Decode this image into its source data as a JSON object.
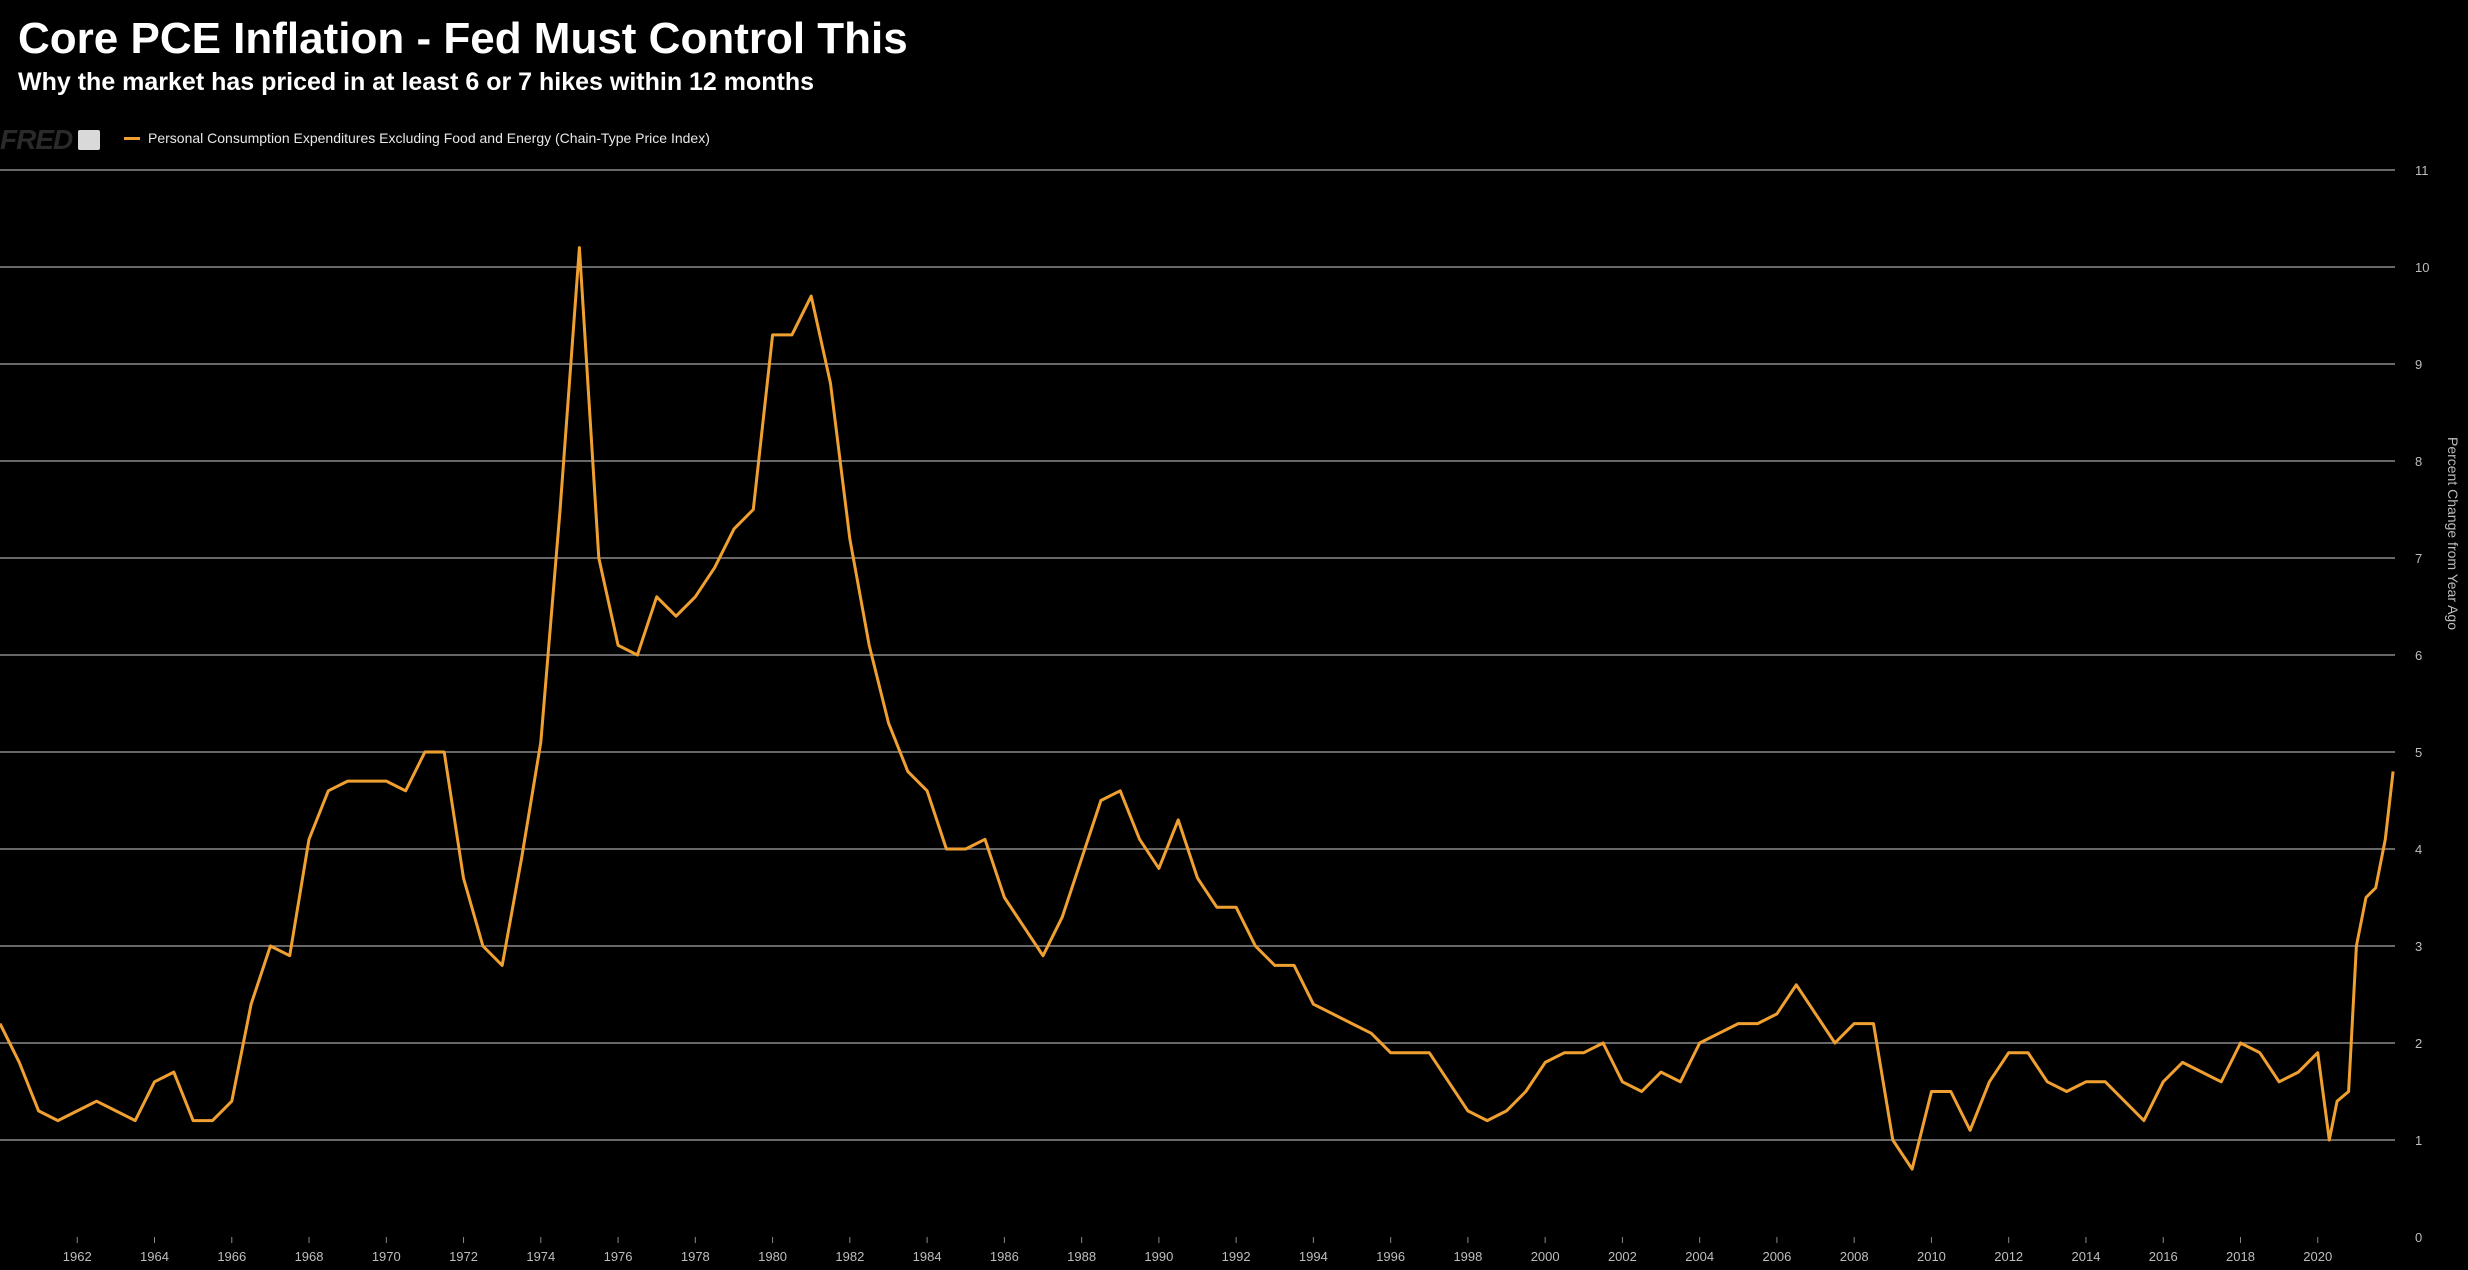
{
  "header": {
    "title": "Core PCE Inflation - Fed Must Control This",
    "subtitle": "Why the market has priced in at least 6 or 7 hikes within 12 months"
  },
  "brand": {
    "logo_text": "FRED",
    "icon": "chart-line-icon"
  },
  "chart_data": {
    "type": "line",
    "title": "Core PCE Inflation - Fed Must Control This",
    "subtitle": "Why the market has priced in at least 6 or 7 hikes within 12 months",
    "xlabel": "",
    "ylabel": "Percent Change from Year Ago",
    "xlim": [
      1960.0,
      2022.0
    ],
    "ylim": [
      0,
      11
    ],
    "y_ticks": [
      0,
      1,
      2,
      3,
      4,
      5,
      6,
      7,
      8,
      9,
      10,
      11
    ],
    "x_ticks": [
      "1962",
      "1964",
      "1966",
      "1968",
      "1970",
      "1972",
      "1974",
      "1976",
      "1978",
      "1980",
      "1982",
      "1984",
      "1986",
      "1988",
      "1990",
      "1992",
      "1994",
      "1996",
      "1998",
      "2000",
      "2002",
      "2004",
      "2006",
      "2008",
      "2010",
      "2012",
      "2014",
      "2016",
      "2018",
      "2020"
    ],
    "grid": true,
    "legend_position": "top-left",
    "colors": {
      "line": "#f0a030",
      "grid": "#8a8a8a",
      "background": "#000000"
    },
    "series": [
      {
        "name": "Personal Consumption Expenditures Excluding Food and Energy (Chain-Type Price Index)",
        "x": [
          1960.0,
          1960.5,
          1961.0,
          1961.5,
          1962.0,
          1962.5,
          1963.0,
          1963.5,
          1964.0,
          1964.5,
          1965.0,
          1965.5,
          1966.0,
          1966.5,
          1967.0,
          1967.5,
          1968.0,
          1968.5,
          1969.0,
          1969.5,
          1970.0,
          1970.5,
          1971.0,
          1971.5,
          1972.0,
          1972.5,
          1973.0,
          1973.5,
          1974.0,
          1974.5,
          1975.0,
          1975.5,
          1976.0,
          1976.5,
          1977.0,
          1977.5,
          1978.0,
          1978.5,
          1979.0,
          1979.5,
          1980.0,
          1980.5,
          1981.0,
          1981.5,
          1982.0,
          1982.5,
          1983.0,
          1983.5,
          1984.0,
          1984.5,
          1985.0,
          1985.5,
          1986.0,
          1986.5,
          1987.0,
          1987.5,
          1988.0,
          1988.5,
          1989.0,
          1989.5,
          1990.0,
          1990.5,
          1991.0,
          1991.5,
          1992.0,
          1992.5,
          1993.0,
          1993.5,
          1994.0,
          1994.5,
          1995.0,
          1995.5,
          1996.0,
          1996.5,
          1997.0,
          1997.5,
          1998.0,
          1998.5,
          1999.0,
          1999.5,
          2000.0,
          2000.5,
          2001.0,
          2001.5,
          2002.0,
          2002.5,
          2003.0,
          2003.5,
          2004.0,
          2004.5,
          2005.0,
          2005.5,
          2006.0,
          2006.5,
          2007.0,
          2007.5,
          2008.0,
          2008.5,
          2009.0,
          2009.5,
          2010.0,
          2010.5,
          2011.0,
          2011.5,
          2012.0,
          2012.5,
          2013.0,
          2013.5,
          2014.0,
          2014.5,
          2015.0,
          2015.5,
          2016.0,
          2016.5,
          2017.0,
          2017.5,
          2018.0,
          2018.5,
          2019.0,
          2019.5,
          2020.0,
          2020.3,
          2020.5,
          2020.8,
          2021.0,
          2021.25,
          2021.5,
          2021.75,
          2021.95
        ],
        "values": [
          2.2,
          1.8,
          1.3,
          1.2,
          1.3,
          1.4,
          1.3,
          1.2,
          1.6,
          1.7,
          1.2,
          1.2,
          1.4,
          2.4,
          3.0,
          2.9,
          4.1,
          4.6,
          4.7,
          4.7,
          4.7,
          4.6,
          5.0,
          5.0,
          3.7,
          3.0,
          2.8,
          3.9,
          5.1,
          7.5,
          10.2,
          7.0,
          6.1,
          6.0,
          6.6,
          6.4,
          6.6,
          6.9,
          7.3,
          7.5,
          9.3,
          9.3,
          9.7,
          8.8,
          7.2,
          6.1,
          5.3,
          4.8,
          4.6,
          4.0,
          4.0,
          4.1,
          3.5,
          3.2,
          2.9,
          3.3,
          3.9,
          4.5,
          4.6,
          4.1,
          3.8,
          4.3,
          3.7,
          3.4,
          3.4,
          3.0,
          2.8,
          2.8,
          2.4,
          2.3,
          2.2,
          2.1,
          1.9,
          1.9,
          1.9,
          1.6,
          1.3,
          1.2,
          1.3,
          1.5,
          1.8,
          1.9,
          1.9,
          2.0,
          1.6,
          1.5,
          1.7,
          1.6,
          2.0,
          2.1,
          2.2,
          2.2,
          2.3,
          2.6,
          2.3,
          2.0,
          2.2,
          2.2,
          1.0,
          0.7,
          1.5,
          1.5,
          1.1,
          1.6,
          1.9,
          1.9,
          1.6,
          1.5,
          1.6,
          1.6,
          1.4,
          1.2,
          1.6,
          1.8,
          1.7,
          1.6,
          2.0,
          1.9,
          1.6,
          1.7,
          1.9,
          1.0,
          1.4,
          1.5,
          3.0,
          3.5,
          3.6,
          4.1,
          4.8
        ]
      }
    ]
  }
}
